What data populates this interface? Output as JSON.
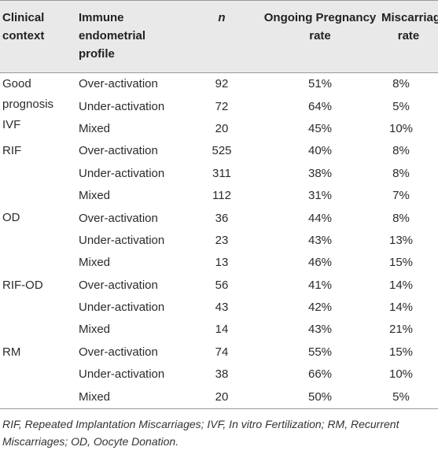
{
  "table": {
    "header": [
      "Clinical context",
      "Immune endometrial profile",
      "n",
      "Ongoing Pregnancy rate",
      "Miscarriages rate"
    ],
    "groups": [
      {
        "context": "Good prognosis IVF",
        "rows": [
          [
            "Over-activation",
            "92",
            "51%",
            "8%"
          ],
          [
            "Under-activation",
            "72",
            "64%",
            "5%"
          ],
          [
            "Mixed",
            "20",
            "45%",
            "10%"
          ]
        ]
      },
      {
        "context": "RIF",
        "rows": [
          [
            "Over-activation",
            "525",
            "40%",
            "8%"
          ],
          [
            "Under-activation",
            "311",
            "38%",
            "8%"
          ],
          [
            "Mixed",
            "112",
            "31%",
            "7%"
          ]
        ]
      },
      {
        "context": "OD",
        "rows": [
          [
            "Over-activation",
            "36",
            "44%",
            "8%"
          ],
          [
            "Under-activation",
            "23",
            "43%",
            "13%"
          ],
          [
            "Mixed",
            "13",
            "46%",
            "15%"
          ]
        ]
      },
      {
        "context": "RIF-OD",
        "rows": [
          [
            "Over-activation",
            "56",
            "41%",
            "14%"
          ],
          [
            "Under-activation",
            "43",
            "42%",
            "14%"
          ],
          [
            "Mixed",
            "14",
            "43%",
            "21%"
          ]
        ]
      },
      {
        "context": "RM",
        "rows": [
          [
            "Over-activation",
            "74",
            "55%",
            "15%"
          ],
          [
            "Under-activation",
            "38",
            "66%",
            "10%"
          ],
          [
            "Mixed",
            "20",
            "50%",
            "5%"
          ]
        ]
      }
    ],
    "footnote": "RIF, Repeated Implantation Miscarriages; IVF, In vitro Fertilization; RM, Recurrent Miscarriages; OD, Oocyte Donation."
  }
}
